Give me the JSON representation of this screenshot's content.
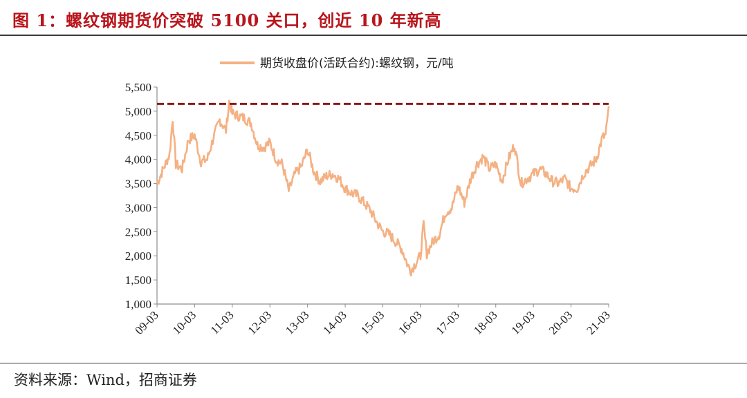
{
  "figure": {
    "title": "图 1：螺纹钢期货价突破 5100 关口，创近 10 年新高",
    "source": "资料来源：Wind，招商证券"
  },
  "colors": {
    "title": "#B8151C",
    "series": "#F4B183",
    "reference": "#8B1A1A"
  },
  "chart_data": {
    "type": "line",
    "title": "",
    "xlabel": "",
    "ylabel": "",
    "legend": {
      "position": "top-center"
    },
    "grid": false,
    "ylim": [
      1000,
      5500
    ],
    "y_ticks": [
      1000,
      1500,
      2000,
      2500,
      3000,
      3500,
      4000,
      4500,
      5000,
      5500
    ],
    "y_tick_labels": [
      "1,000",
      "1,500",
      "2,000",
      "2,500",
      "3,000",
      "3,500",
      "4,000",
      "4,500",
      "5,000",
      "5,500"
    ],
    "x_tick_labels": [
      "09-03",
      "10-03",
      "11-03",
      "12-03",
      "13-03",
      "14-03",
      "15-03",
      "16-03",
      "17-03",
      "18-03",
      "19-03",
      "20-03",
      "21-03"
    ],
    "reference_line": {
      "value": 5150,
      "style": "dashed"
    },
    "series": [
      {
        "name": "期货收盘价(活跃合约):螺纹钢，元/吨",
        "x": [
          "2009-03",
          "2009-05",
          "2009-07",
          "2009-08",
          "2009-09",
          "2009-11",
          "2010-01",
          "2010-03",
          "2010-05",
          "2010-07",
          "2010-09",
          "2010-11",
          "2011-01",
          "2011-02",
          "2011-03",
          "2011-05",
          "2011-07",
          "2011-09",
          "2011-11",
          "2012-01",
          "2012-03",
          "2012-05",
          "2012-07",
          "2012-09",
          "2012-11",
          "2013-01",
          "2013-03",
          "2013-05",
          "2013-07",
          "2013-09",
          "2013-11",
          "2014-01",
          "2014-03",
          "2014-05",
          "2014-07",
          "2014-09",
          "2014-11",
          "2015-01",
          "2015-03",
          "2015-05",
          "2015-07",
          "2015-09",
          "2015-11",
          "2015-12",
          "2016-01",
          "2016-03",
          "2016-04",
          "2016-05",
          "2016-07",
          "2016-09",
          "2016-11",
          "2017-01",
          "2017-03",
          "2017-05",
          "2017-07",
          "2017-09",
          "2017-11",
          "2018-01",
          "2018-03",
          "2018-05",
          "2018-07",
          "2018-09",
          "2018-11",
          "2019-01",
          "2019-03",
          "2019-05",
          "2019-07",
          "2019-09",
          "2019-11",
          "2020-01",
          "2020-03",
          "2020-05",
          "2020-07",
          "2020-09",
          "2020-11",
          "2021-01",
          "2021-02",
          "2021-03"
        ],
        "y": [
          3500,
          3800,
          4100,
          4850,
          3900,
          3800,
          4400,
          4500,
          3950,
          4000,
          4450,
          4820,
          4600,
          5200,
          4950,
          4900,
          4850,
          4750,
          4300,
          4250,
          4350,
          4000,
          3900,
          3350,
          3700,
          3850,
          4200,
          3750,
          3550,
          3650,
          3700,
          3600,
          3400,
          3300,
          3250,
          3100,
          2950,
          2700,
          2500,
          2450,
          2300,
          2150,
          1800,
          1700,
          1800,
          2000,
          2650,
          2050,
          2300,
          2450,
          2900,
          3000,
          3450,
          3100,
          3600,
          3900,
          4050,
          3800,
          3900,
          3550,
          4000,
          4300,
          3500,
          3600,
          3700,
          3800,
          3700,
          3550,
          3500,
          3600,
          3400,
          3400,
          3700,
          3850,
          4000,
          4450,
          4500,
          5100
        ]
      }
    ]
  }
}
